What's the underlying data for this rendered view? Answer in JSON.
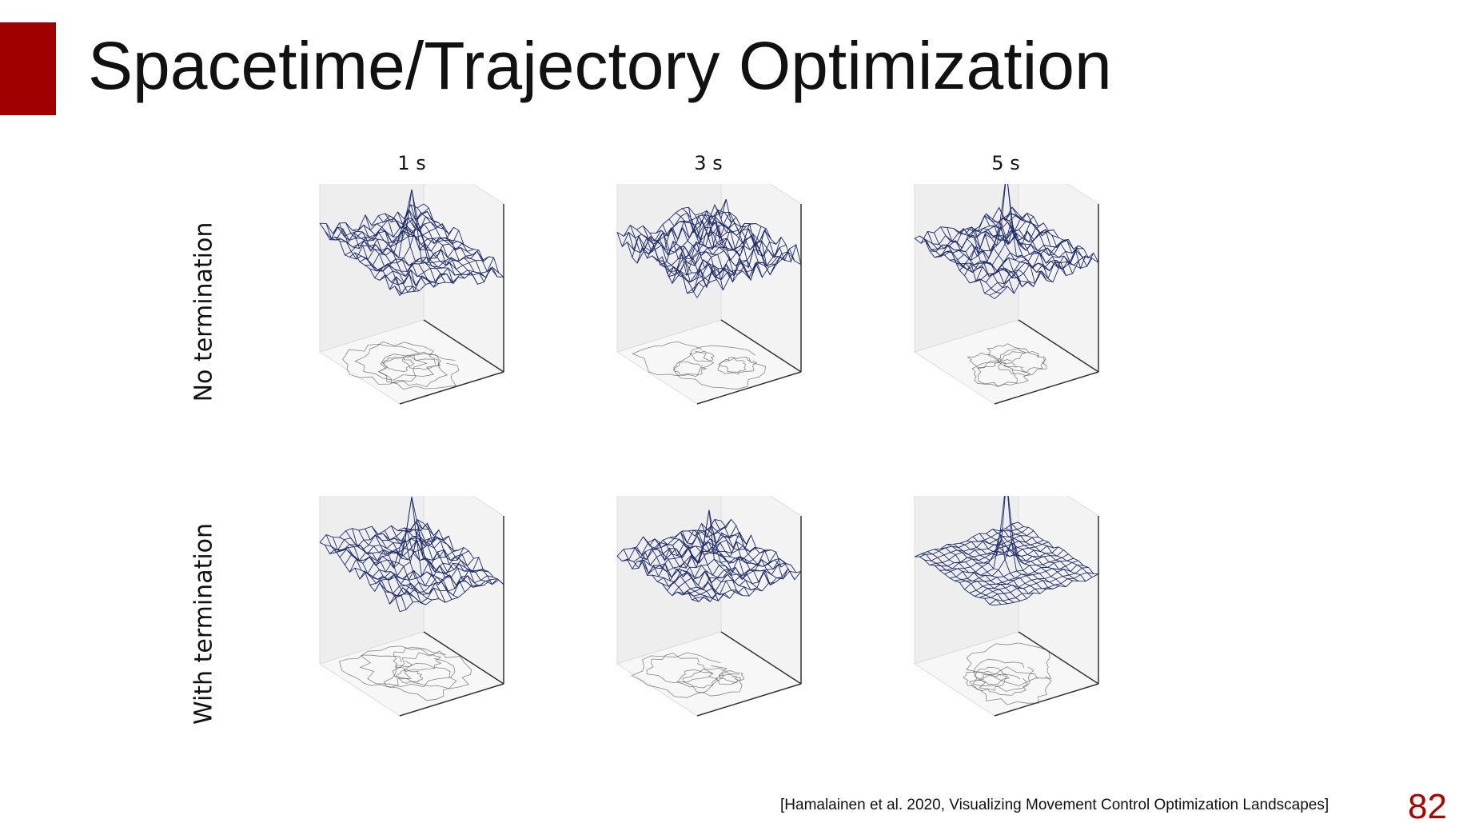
{
  "slide": {
    "title": "Spacetime/Trajectory Optimization",
    "page_number": "82",
    "citation": "[Hamalainen et al. 2020, Visualizing Movement Control Optimization Landscapes]",
    "accent_color": "#a00000"
  },
  "figure": {
    "columns": [
      "1 s",
      "3 s",
      "5 s"
    ],
    "rows": [
      "No termination",
      "With termination"
    ],
    "surface_color": "#1f2a6b",
    "contour_color": "#555555",
    "plots": [
      {
        "row": 0,
        "col": 0,
        "roughness": 0.45,
        "peak": 0.9,
        "slope": 0.35
      },
      {
        "row": 0,
        "col": 1,
        "roughness": 0.75,
        "peak": 0.5,
        "slope": 0.0
      },
      {
        "row": 0,
        "col": 2,
        "roughness": 0.55,
        "peak": 1.0,
        "slope": 0.0
      },
      {
        "row": 1,
        "col": 0,
        "roughness": 0.45,
        "peak": 0.9,
        "slope": 0.35
      },
      {
        "row": 1,
        "col": 1,
        "roughness": 0.5,
        "peak": 0.6,
        "slope": 0.0
      },
      {
        "row": 1,
        "col": 2,
        "roughness": 0.15,
        "peak": 1.0,
        "slope": 0.0
      }
    ]
  }
}
